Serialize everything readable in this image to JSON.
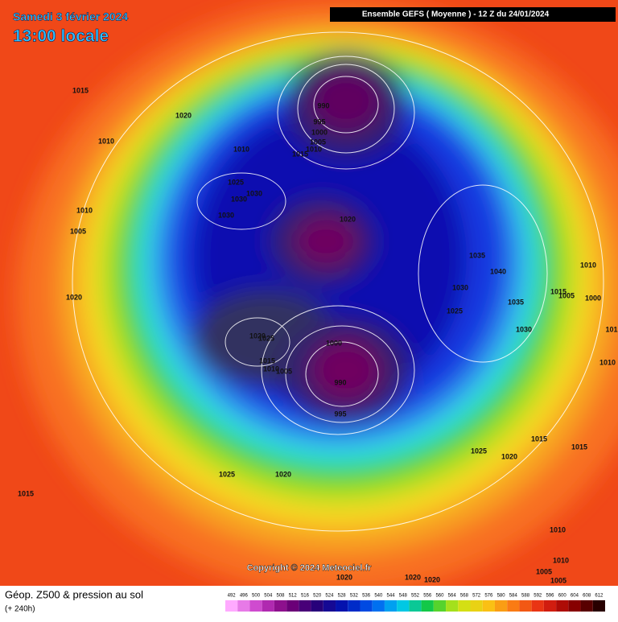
{
  "header": {
    "date": "Samedi 3 février 2024",
    "time": "13:00 locale",
    "model": "Ensemble GEFS  ( Moyenne )  - 12 Z du 24/01/2024"
  },
  "map": {
    "isobar_labels": [
      "1015",
      "1020",
      "1010",
      "1010",
      "1005",
      "1020",
      "1015",
      "990",
      "995",
      "1000",
      "1005",
      "1010",
      "1015",
      "1010",
      "1025",
      "1030",
      "1030",
      "1030",
      "1020",
      "1035",
      "1040",
      "1030",
      "1025",
      "1035",
      "1030",
      "1015",
      "1005",
      "1010",
      "1000",
      "1010",
      "101",
      "1020",
      "1025",
      "1000",
      "1015",
      "1010",
      "1005",
      "990",
      "995",
      "1025",
      "1020",
      "1015",
      "1015",
      "1025",
      "1020",
      "1010",
      "1010",
      "1005",
      "1005",
      "1020",
      "1020",
      "1020"
    ],
    "copyright": "Copyright © 2024 Meteociel.fr"
  },
  "footer": {
    "title": "Géop. Z500 & pression au sol",
    "lead": "(+ 240h)",
    "legend": [
      492,
      496,
      500,
      504,
      508,
      512,
      516,
      520,
      524,
      528,
      532,
      536,
      540,
      544,
      548,
      552,
      556,
      560,
      564,
      568,
      572,
      576,
      580,
      584,
      588,
      592,
      596,
      600,
      604,
      608,
      612
    ]
  }
}
